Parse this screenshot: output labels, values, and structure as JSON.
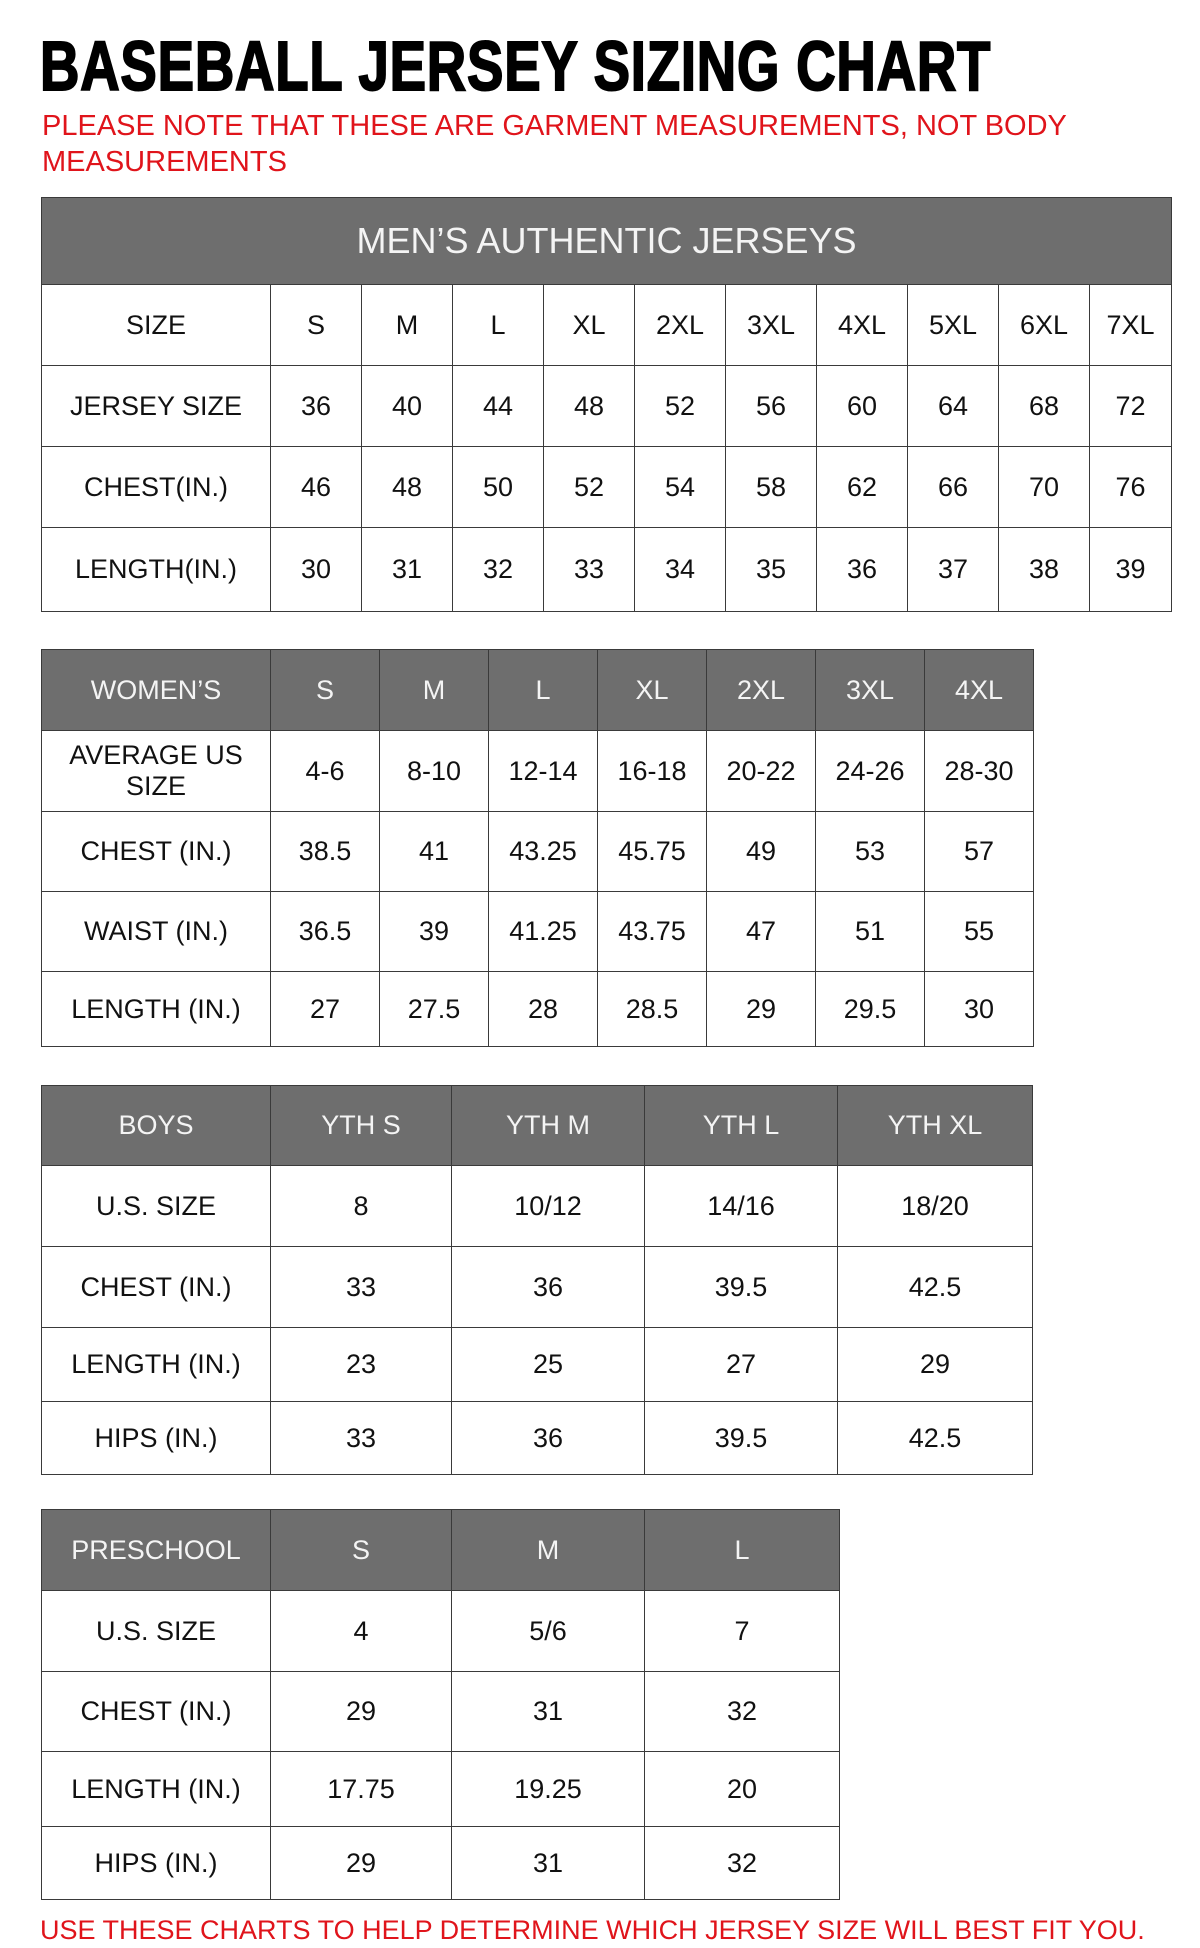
{
  "title": "BASEBALL JERSEY SIZING CHART",
  "note": "PLEASE NOTE THAT THESE ARE GARMENT MEASUREMENTS, NOT BODY MEASUREMENTS",
  "footer": "USE THESE CHARTS TO HELP DETERMINE WHICH JERSEY SIZE WILL BEST FIT YOU.",
  "colors": {
    "header_bg": "#6e6e6e",
    "note_red": "#e0141b"
  },
  "men": {
    "banner": "MEN’S AUTHENTIC JERSEYS",
    "headers": [
      "SIZE",
      "S",
      "M",
      "L",
      "XL",
      "2XL",
      "3XL",
      "4XL",
      "5XL",
      "6XL",
      "7XL"
    ],
    "rows": [
      [
        "JERSEY SIZE",
        "36",
        "40",
        "44",
        "48",
        "52",
        "56",
        "60",
        "64",
        "68",
        "72"
      ],
      [
        "CHEST(IN.)",
        "46",
        "48",
        "50",
        "52",
        "54",
        "58",
        "62",
        "66",
        "70",
        "76"
      ],
      [
        "LENGTH(IN.)",
        "30",
        "31",
        "32",
        "33",
        "34",
        "35",
        "36",
        "37",
        "38",
        "39"
      ]
    ]
  },
  "women": {
    "headers": [
      "WOMEN’S",
      "S",
      "M",
      "L",
      "XL",
      "2XL",
      "3XL",
      "4XL"
    ],
    "rows": [
      [
        "AVERAGE US SIZE",
        "4-6",
        "8-10",
        "12-14",
        "16-18",
        "20-22",
        "24-26",
        "28-30"
      ],
      [
        "CHEST (IN.)",
        "38.5",
        "41",
        "43.25",
        "45.75",
        "49",
        "53",
        "57"
      ],
      [
        "WAIST (IN.)",
        "36.5",
        "39",
        "41.25",
        "43.75",
        "47",
        "51",
        "55"
      ],
      [
        "LENGTH (IN.)",
        "27",
        "27.5",
        "28",
        "28.5",
        "29",
        "29.5",
        "30"
      ]
    ]
  },
  "boys": {
    "headers": [
      "BOYS",
      "YTH S",
      "YTH M",
      "YTH L",
      "YTH XL"
    ],
    "rows": [
      [
        "U.S. SIZE",
        "8",
        "10/12",
        "14/16",
        "18/20"
      ],
      [
        "CHEST (IN.)",
        "33",
        "36",
        "39.5",
        "42.5"
      ],
      [
        "LENGTH (IN.)",
        "23",
        "25",
        "27",
        "29"
      ],
      [
        "HIPS (IN.)",
        "33",
        "36",
        "39.5",
        "42.5"
      ]
    ]
  },
  "preschool": {
    "headers": [
      "PRESCHOOL",
      "S",
      "M",
      "L"
    ],
    "rows": [
      [
        "U.S. SIZE",
        "4",
        "5/6",
        "7"
      ],
      [
        "CHEST (IN.)",
        "29",
        "31",
        "32"
      ],
      [
        "LENGTH (IN.)",
        "17.75",
        "19.25",
        "20"
      ],
      [
        "HIPS (IN.)",
        "29",
        "31",
        "32"
      ]
    ]
  }
}
